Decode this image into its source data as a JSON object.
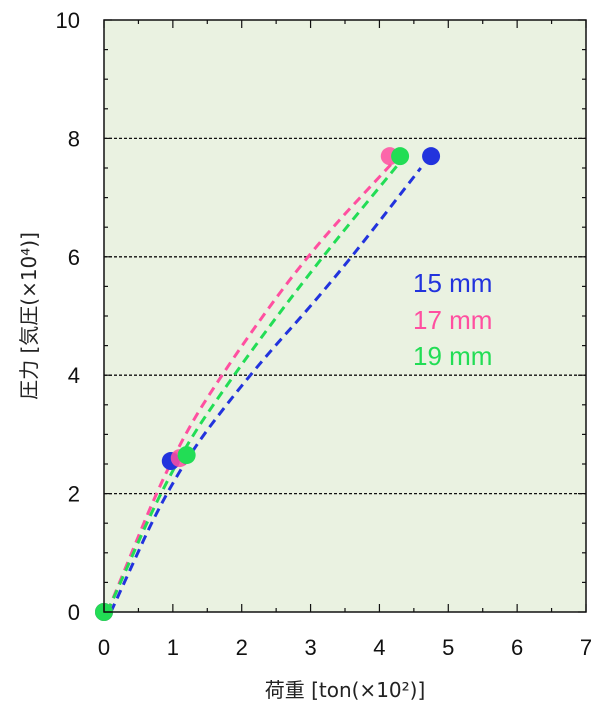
{
  "chart_data": {
    "type": "scatter",
    "xlabel": "荷重 [ton(×10²)]",
    "ylabel": "圧力 [気圧(×10⁴)]",
    "xlim": [
      0,
      7
    ],
    "ylim": [
      0,
      10
    ],
    "x_ticks": [
      "0",
      "1",
      "2",
      "3",
      "4",
      "5",
      "6",
      "7"
    ],
    "y_ticks": [
      "0",
      "2",
      "4",
      "6",
      "8",
      "10"
    ],
    "grid": "horizontal dashed at y = 2, 4, 6, 8",
    "background": "#eaf2e1",
    "legend_placement": "center-right",
    "series": [
      {
        "name": "15 mm",
        "color": "#2233dd",
        "points": [
          [
            0,
            0
          ],
          [
            0.97,
            2.55
          ],
          [
            4.75,
            7.7
          ]
        ],
        "trend": [
          [
            0.1,
            0
          ],
          [
            1.0,
            2.3
          ],
          [
            2.1,
            4.0
          ],
          [
            3.3,
            5.55
          ],
          [
            4.6,
            7.5
          ]
        ]
      },
      {
        "name": "17 mm",
        "color": "#ff4fa0",
        "points": [
          [
            0,
            0
          ],
          [
            1.1,
            2.6
          ],
          [
            4.15,
            7.7
          ]
        ],
        "trend": [
          [
            0.05,
            0
          ],
          [
            1.0,
            2.7
          ],
          [
            1.9,
            4.35
          ],
          [
            3.0,
            6.1
          ],
          [
            4.2,
            7.6
          ]
        ]
      },
      {
        "name": "19 mm",
        "color": "#22dd55",
        "points": [
          [
            0,
            0
          ],
          [
            1.2,
            2.65
          ],
          [
            4.3,
            7.7
          ]
        ],
        "trend": [
          [
            0.05,
            0
          ],
          [
            1.0,
            2.5
          ],
          [
            2.0,
            4.2
          ],
          [
            3.1,
            5.9
          ],
          [
            4.3,
            7.6
          ]
        ]
      }
    ],
    "legend": [
      {
        "label": "15 mm",
        "color": "#2233dd"
      },
      {
        "label": "17 mm",
        "color": "#ff4fa0"
      },
      {
        "label": "19 mm",
        "color": "#22dd55"
      }
    ]
  }
}
